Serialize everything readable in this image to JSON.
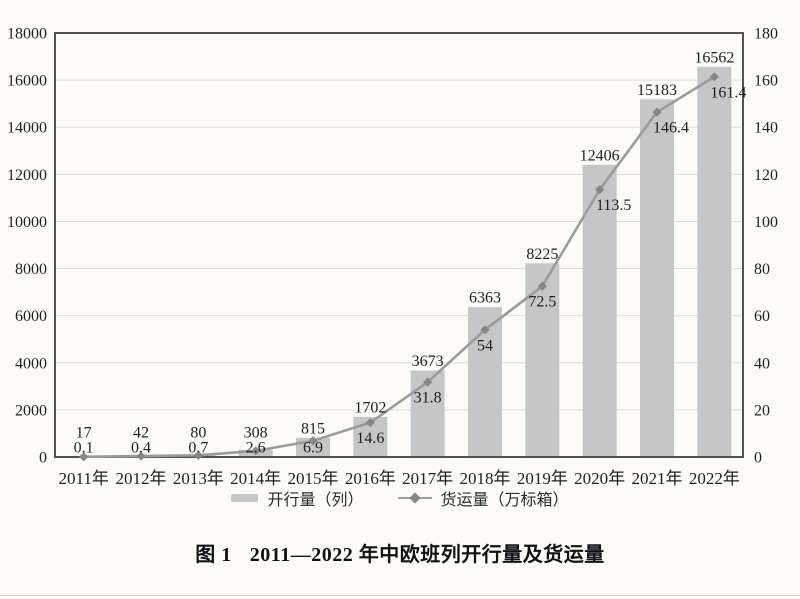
{
  "caption": {
    "prefix": "图 1",
    "text": "2011—2022 年中欧班列开行量及货运量"
  },
  "colors": {
    "background": "#fcfbf7",
    "bar": "#c6c6c6",
    "line": "#9b9b9b",
    "marker": "#878787",
    "grid": "#dcdbd6",
    "border": "#3f3f3f",
    "text": "#1f1f1f"
  },
  "chart_data": {
    "type": "combo-bar-line",
    "title": "图 1 2011—2022 年中欧班列开行量及货运量",
    "categories": [
      "2011年",
      "2012年",
      "2013年",
      "2014年",
      "2015年",
      "2016年",
      "2017年",
      "2018年",
      "2019年",
      "2020年",
      "2021年",
      "2022年"
    ],
    "series": [
      {
        "name": "开行量（列）",
        "type": "bar",
        "axis": "left",
        "color": "#c6c6c6",
        "values": [
          17,
          42,
          80,
          308,
          815,
          1702,
          3673,
          6363,
          8225,
          12406,
          15183,
          16562
        ],
        "labels": [
          "17",
          "42",
          "80",
          "308",
          "815",
          "1702",
          "3673",
          "6363",
          "8225",
          "12406",
          "15183",
          "16562"
        ]
      },
      {
        "name": "货运量（万标箱）",
        "type": "line",
        "axis": "right",
        "color": "#9b9b9b",
        "marker": "diamond",
        "marker_color": "#878787",
        "values": [
          0.1,
          0.4,
          0.7,
          2.6,
          6.9,
          14.6,
          31.8,
          54,
          72.5,
          113.5,
          146.4,
          161.4
        ],
        "labels": [
          "0.1",
          "0.4",
          "0.7",
          "2.6",
          "6.9",
          "14.6",
          "31.8",
          "54",
          "72.5",
          "113.5",
          "146.4",
          "161.4"
        ]
      }
    ],
    "left_axis": {
      "min": 0,
      "max": 18000,
      "step": 2000,
      "ticks": [
        0,
        2000,
        4000,
        6000,
        8000,
        10000,
        12000,
        14000,
        16000,
        18000
      ]
    },
    "right_axis": {
      "min": 0,
      "max": 180,
      "step": 20,
      "ticks": [
        0,
        20,
        40,
        60,
        80,
        100,
        120,
        140,
        160,
        180
      ]
    },
    "grid": true,
    "data_labels": true,
    "legend_position": "bottom"
  }
}
